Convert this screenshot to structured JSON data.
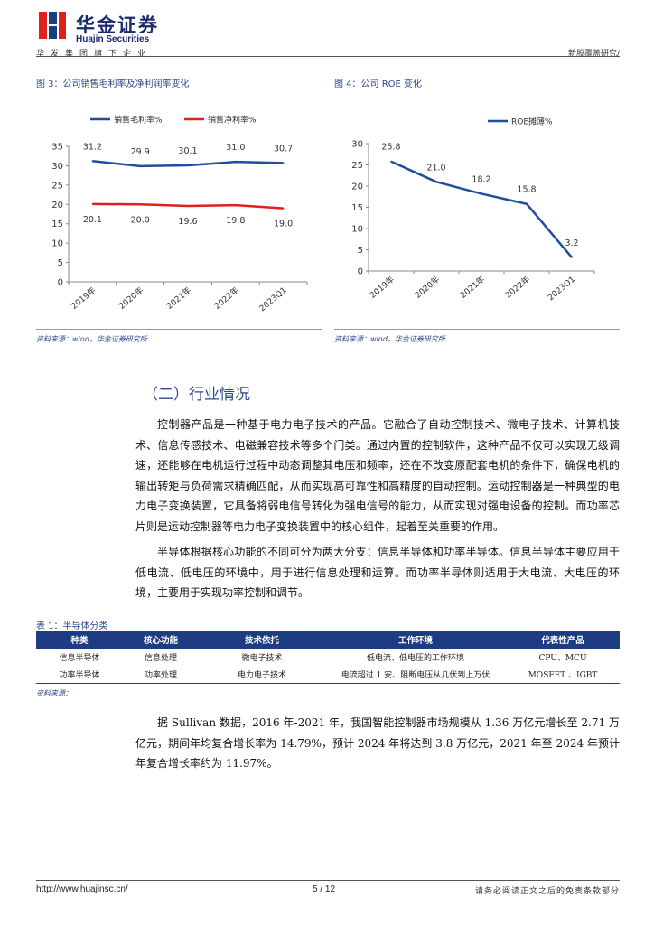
{
  "header": {
    "logo_cn": "华金证券",
    "logo_en": "Huajin Securities",
    "slogan": "华发集团旗下企业",
    "report_type": "新股覆盖研究/"
  },
  "figures": [
    {
      "title": "图 3：公司销售毛利率及净利润率变化",
      "source": "资料来源：wind，华金证券研究所"
    },
    {
      "title": "图 4：公司 ROE 变化",
      "source": "资料来源：wind，华金证券研究所"
    }
  ],
  "chart_data": [
    {
      "type": "line",
      "title": "图 3：公司销售毛利率及净利润率变化",
      "categories": [
        "2019年",
        "2020年",
        "2021年",
        "2022年",
        "2023Q1"
      ],
      "series": [
        {
          "name": "销售毛利率%",
          "values": [
            31.2,
            29.9,
            30.1,
            31.0,
            30.7
          ],
          "labels": [
            "31.2",
            "29.9",
            "30.1",
            "31.0",
            "30.7"
          ],
          "color": "#1f4e9c"
        },
        {
          "name": "销售净利率%",
          "values": [
            20.1,
            20.0,
            19.6,
            19.8,
            19.0
          ],
          "labels": [
            "20.1",
            "20.0",
            "19.6",
            "19.8",
            "19.0"
          ],
          "color": "#e0201c"
        }
      ],
      "yticks": [
        "0",
        "5",
        "10",
        "15",
        "20",
        "25",
        "30",
        "35"
      ],
      "ylim": [
        0,
        35
      ],
      "legend": "top",
      "grid": false
    },
    {
      "type": "line",
      "title": "图 4：公司 ROE 变化",
      "categories": [
        "2019年",
        "2020年",
        "2021年",
        "2022年",
        "2023Q1"
      ],
      "series": [
        {
          "name": "ROE摊薄%",
          "values": [
            25.8,
            21.0,
            18.2,
            15.8,
            3.2
          ],
          "labels": [
            "25.8",
            "21.0",
            "18.2",
            "15.8",
            "3.2"
          ],
          "color": "#1f4e9c"
        }
      ],
      "yticks": [
        "0",
        "5",
        "10",
        "15",
        "20",
        "25",
        "30"
      ],
      "ylim": [
        0,
        30
      ],
      "legend": "top",
      "grid": false
    }
  ],
  "section": {
    "title": "（二）行业情况",
    "paragraphs": [
      "控制器产品是一种基于电力电子技术的产品。它融合了自动控制技术、微电子技术、计算机技术、信息传感技术、电磁兼容技术等多个门类。通过内置的控制软件，这种产品不仅可以实现无级调速，还能够在电机运行过程中动态调整其电压和频率，还在不改变原配套电机的条件下，确保电机的输出转矩与负荷需求精确匹配，从而实现高可靠性和高精度的自动控制。运动控制器是一种典型的电力电子变换装置，它具备将弱电信号转化为强电信号的能力，从而实现对强电设备的控制。而功率芯片则是运动控制器等电力电子变换装置中的核心组件，起着至关重要的作用。",
      "半导体根据核心功能的不同可分为两大分支：信息半导体和功率半导体。信息半导体主要应用于低电流、低电压的环境中，用于进行信息处理和运算。而功率半导体则适用于大电流、大电压的环境，主要用于实现功率控制和调节。",
      "据 Sullivan 数据，2016 年-2021 年，我国智能控制器市场规模从 1.36 万亿元增长至 2.71 万亿元，期间年均复合增长率为 14.79%，预计 2024 年将达到 3.8 万亿元，2021 年至 2024 年预计年复合增长率约为 11.97%。"
    ]
  },
  "table": {
    "title": "表 1：半导体分类",
    "headers": [
      "种类",
      "核心功能",
      "技术依托",
      "工作环境",
      "代表性产品"
    ],
    "rows": [
      [
        "信息半导体",
        "信息处理",
        "微电子技术",
        "低电流、低电压的工作环境",
        "CPU、MCU"
      ],
      [
        "功率半导体",
        "功率处理",
        "电力电子技术",
        "电流超过 1 安、阻断电压从几伏到上万伏",
        "MOSFET 、IGBT"
      ]
    ],
    "source": "资料来源：￼￼￼￼￼￼￼￼￼￼￼￼￼￼￼￼￼￼￼￼￼"
  },
  "footer": {
    "url": "http://www.huajinsc.cn/",
    "page": "5 / 12",
    "disclaimer": "请务必阅读正文之后的免责条款部分"
  },
  "colors": {
    "brand_blue": "#1e3c82",
    "title_blue": "#2c4a8a",
    "line_blue": "#1f4e9c",
    "line_red": "#e0201c"
  }
}
